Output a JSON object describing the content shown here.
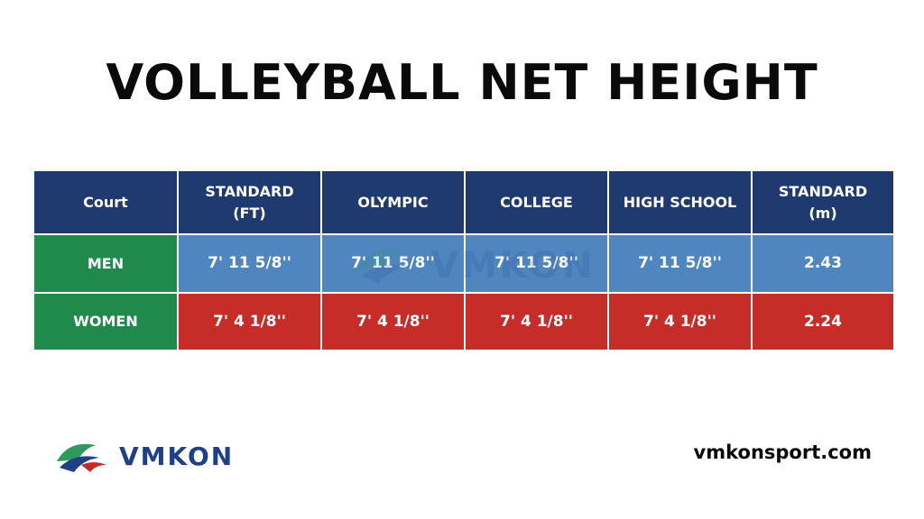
{
  "title": "VOLLEYBALL NET HEIGHT",
  "colors": {
    "header_bg": "#1f3a6e",
    "row_label_bg": "#1f8a4c",
    "men_bg": "#4f86c0",
    "women_bg": "#c62d28",
    "logo_blue": "#1f3f86",
    "logo_green": "#2e9a5a"
  },
  "table": {
    "headers": [
      "Court",
      "STANDARD\n(FT)",
      "OLYMPIC",
      "COLLEGE",
      "HIGH SCHOOL",
      "STANDARD\n(m)"
    ],
    "rows": [
      {
        "label": "MEN",
        "cells": [
          "7' 11 5/8''",
          "7' 11 5/8''",
          "7' 11 5/8''",
          "7' 11 5/8''",
          "2.43"
        ]
      },
      {
        "label": "WOMEN",
        "cells": [
          "7' 4 1/8''",
          "7' 4 1/8''",
          "7' 4 1/8''",
          "7' 4 1/8''",
          "2.24"
        ]
      }
    ]
  },
  "logo": {
    "text": "VMKON",
    "icon": "vmkon-logo-icon"
  },
  "watermark": {
    "text": "VMKON",
    "icon": "vmkon-logo-icon"
  },
  "footer": {
    "website": "vmkonsport.com"
  }
}
